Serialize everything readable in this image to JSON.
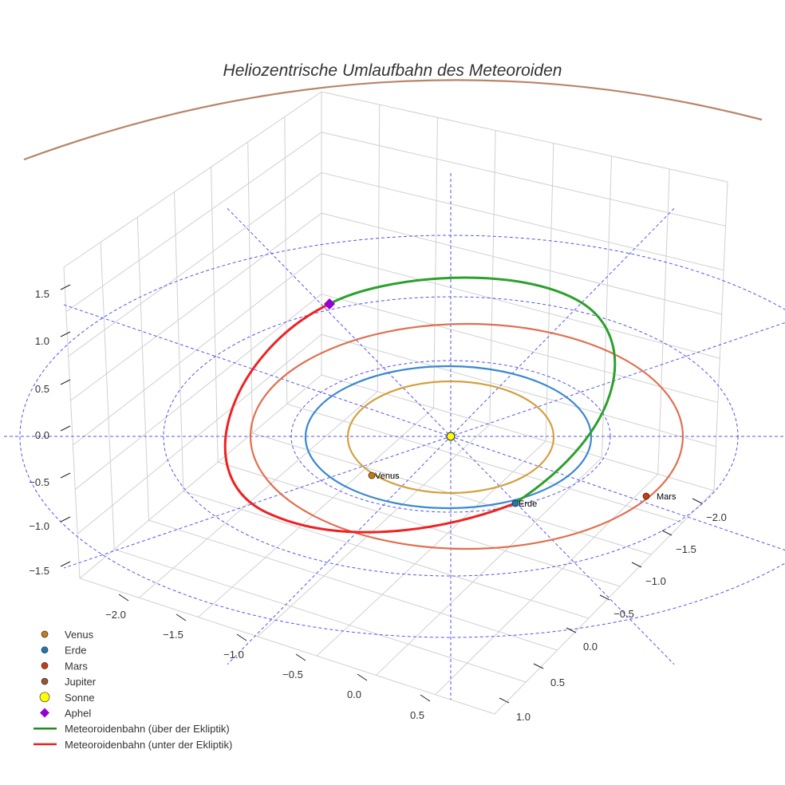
{
  "chart_data": {
    "type": "line3d",
    "title": "Heliozentrische Umlaufbahn des Meteoroiden",
    "axes": {
      "x_ticks": [
        "−2.0",
        "−1.5",
        "−1.0",
        "−0.5",
        "0.0",
        "0.5"
      ],
      "y_ticks": [
        "−2.0",
        "−1.5",
        "−1.0",
        "−0.5",
        "0.0",
        "0.5",
        "1.0"
      ],
      "z_ticks": [
        "1.5",
        "1.0",
        "0.5",
        "0.0",
        "−0.5",
        "−1.0",
        "−1.5"
      ],
      "x_range": [
        -2.2,
        0.8
      ],
      "y_range": [
        -2.2,
        1.2
      ],
      "z_range": [
        -1.7,
        1.8
      ]
    },
    "orbits": [
      {
        "name": "Venus",
        "radius_au": 0.72,
        "color": "#d4a040"
      },
      {
        "name": "Erde",
        "radius_au": 1.0,
        "color": "#3a88d0"
      },
      {
        "name": "Mars",
        "radius_au": 1.52,
        "color": "#e07050"
      },
      {
        "name": "Jupiter",
        "radius_au": 5.2,
        "color": "#b8846a"
      }
    ],
    "bodies": [
      {
        "name": "Venus",
        "label": "Venus",
        "color": "#c87a14"
      },
      {
        "name": "Erde",
        "label": "Erde",
        "color": "#1f77b4"
      },
      {
        "name": "Mars",
        "label": "Mars",
        "color": "#cc3a10"
      },
      {
        "name": "Sonne",
        "color": "#ffff00"
      },
      {
        "name": "Aphel",
        "color": "#9400d3"
      }
    ],
    "meteoroid": {
      "above_color": "#2ca02c",
      "below_color": "#ee2222"
    },
    "ecliptic_grid_color": "#5555ee",
    "legend": [
      {
        "label": "Venus",
        "marker": "circle",
        "color": "#c87a14"
      },
      {
        "label": "Erde",
        "marker": "circle",
        "color": "#1f77b4"
      },
      {
        "label": "Mars",
        "marker": "circle",
        "color": "#cc3a10"
      },
      {
        "label": "Jupiter",
        "marker": "circle",
        "color": "#a0522d"
      },
      {
        "label": "Sonne",
        "marker": "circle-large",
        "color": "#ffff00"
      },
      {
        "label": "Aphel",
        "marker": "diamond",
        "color": "#9400d3"
      },
      {
        "label": "Meteoroidenbahn (über der Ekliptik)",
        "marker": "line",
        "color": "#228b22"
      },
      {
        "label": "Meteoroidenbahn (unter der Ekliptik)",
        "marker": "line",
        "color": "#ee2222"
      }
    ],
    "legend_position": "bottom-left"
  }
}
